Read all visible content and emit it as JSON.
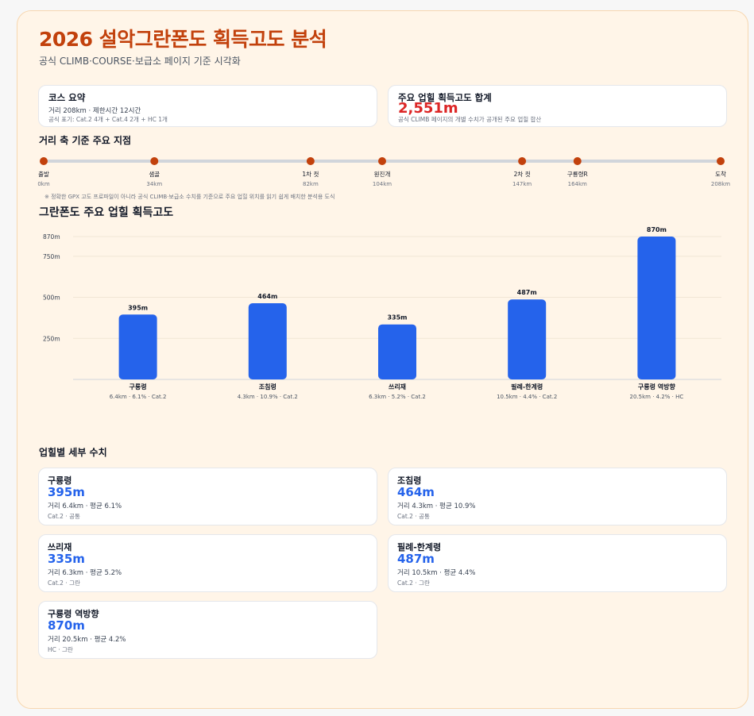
{
  "header": {
    "title": "2026 설악그란폰도 획득고도 분석",
    "subtitle": "공식 CLIMB·COURSE·보급소 페이지 기준 시각화"
  },
  "summary_course": {
    "title": "코스 요약",
    "line1": "거리 208km · 제한시간 12시간",
    "line2": "공식 표기: Cat.2 4개 + Cat.4 2개 + HC 1개"
  },
  "summary_gain": {
    "title": "주요 업힐 획득고도 합계",
    "value": "2,551m",
    "note": "공식 CLIMB 페이지의 개별 수치가 공개된 주요 업힐 합산"
  },
  "timeline": {
    "title": "거리 축 기준 주요 지점",
    "total_km": 208,
    "points": [
      {
        "name": "출발",
        "km": 0,
        "km_label": "0km"
      },
      {
        "name": "샘골",
        "km": 34,
        "km_label": "34km"
      },
      {
        "name": "1차 컷",
        "km": 82,
        "km_label": "82km"
      },
      {
        "name": "원진개",
        "km": 104,
        "km_label": "104km"
      },
      {
        "name": "2차 컷",
        "km": 147,
        "km_label": "147km"
      },
      {
        "name": "구룡령R",
        "km": 164,
        "km_label": "164km"
      },
      {
        "name": "도착",
        "km": 208,
        "km_label": "208km"
      }
    ],
    "note": "※ 정확한 GPX 고도 프로파일이 아니라 공식 CLIMB·보급소 수치를 기준으로 주요 업힐 위치를 읽기 쉽게 배치한 분석용 도식"
  },
  "chart_section_title": "그란폰도 주요 업힐 획득고도",
  "chart_data": {
    "type": "bar",
    "title": "그란폰도 주요 업힐 획득고도",
    "categories": [
      "구룡령",
      "조침령",
      "쓰리재",
      "필례-한계령",
      "구룡령 역방향"
    ],
    "category_details": [
      "6.4km · 6.1% · Cat.2",
      "4.3km · 10.9% · Cat.2",
      "6.3km · 5.2% · Cat.2",
      "10.5km · 4.4% · Cat.2",
      "20.5km · 4.2% · HC"
    ],
    "values": [
      395,
      464,
      335,
      487,
      870
    ],
    "value_labels": [
      "395m",
      "464m",
      "335m",
      "487m",
      "870m"
    ],
    "yticks": [
      250,
      500,
      750,
      870
    ],
    "ytick_labels": [
      "250m",
      "500m",
      "750m",
      "870m"
    ],
    "ylim": [
      0,
      870
    ],
    "grid": true,
    "bar_color": "#2563eb"
  },
  "details": {
    "title": "업힐별 세부 수치",
    "cards": [
      {
        "name": "구룡령",
        "value": "395m",
        "line1": "거리 6.4km · 평균 6.1%",
        "line2": "Cat.2 · 공통"
      },
      {
        "name": "조침령",
        "value": "464m",
        "line1": "거리 4.3km · 평균 10.9%",
        "line2": "Cat.2 · 공통"
      },
      {
        "name": "쓰리재",
        "value": "335m",
        "line1": "거리 6.3km · 평균 5.2%",
        "line2": "Cat.2 · 그란"
      },
      {
        "name": "필례-한계령",
        "value": "487m",
        "line1": "거리 10.5km · 평균 4.4%",
        "line2": "Cat.2 · 그란"
      },
      {
        "name": "구룡령 역방향",
        "value": "870m",
        "line1": "거리 20.5km · 평균 4.2%",
        "line2": "HC · 그란"
      }
    ]
  },
  "colors": {
    "accent": "#c2410c",
    "bar": "#2563eb",
    "total": "#dc2626",
    "timeline_dot": "#c2410c",
    "timeline_line": "#d1d5db"
  }
}
